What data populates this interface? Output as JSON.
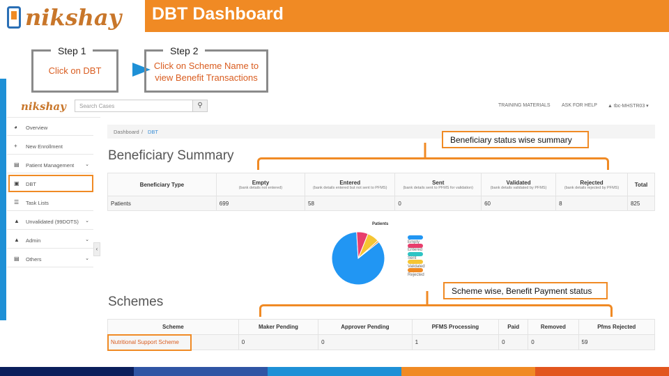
{
  "slide": {
    "title": "DBT Dashboard",
    "brand": "nikshay",
    "step1": {
      "label": "Step 1",
      "text": "Click on DBT"
    },
    "step2": {
      "label": "Step 2",
      "text": "Click on Scheme Name to view Benefit Transactions"
    },
    "callout_beneficiary": "Beneficiary status wise summary",
    "callout_scheme": "Scheme wise, Benefit Payment status"
  },
  "app": {
    "logo": "nikshay",
    "search_placeholder": "Search Cases",
    "nav": {
      "training": "TRAINING MATERIALS",
      "help": "ASK FOR HELP",
      "user": "▲ tbc-MHSTR03 ▾"
    },
    "sidebar": [
      {
        "label": "Overview",
        "icon": "dashboard-icon",
        "glyph": "◕"
      },
      {
        "label": "New Enrollment",
        "icon": "plus-icon",
        "glyph": "+"
      },
      {
        "label": "Patient Management",
        "icon": "clipboard-icon",
        "glyph": "▤",
        "chevron": "⌄"
      },
      {
        "label": "DBT",
        "icon": "money-icon",
        "glyph": "▣"
      },
      {
        "label": "Task Lists",
        "icon": "list-icon",
        "glyph": "☰"
      },
      {
        "label": "Unvalidated (99DOTS)",
        "icon": "warning-icon",
        "glyph": "▲",
        "chevron": "⌄"
      },
      {
        "label": "Admin",
        "icon": "user-icon",
        "glyph": "▲",
        "chevron": "⌄"
      },
      {
        "label": "Others",
        "icon": "folder-icon",
        "glyph": "▤",
        "chevron": "⌄"
      }
    ],
    "breadcrumb": {
      "home": "Dashboard",
      "sep": "/",
      "current": "DBT"
    },
    "beneficiary": {
      "heading": "Beneficiary Summary",
      "headers": {
        "type": "Beneficiary Type",
        "empty": "Empty",
        "empty_sub": "(bank details not entered)",
        "entered": "Entered",
        "entered_sub": "(bank details entered but not sent to PFMS)",
        "sent": "Sent",
        "sent_sub": "(bank details sent to PFMS for validation)",
        "validated": "Validated",
        "validated_sub": "(bank details validated by PFMS)",
        "rejected": "Rejected",
        "rejected_sub": "(bank details rejected by PFMS)",
        "total": "Total"
      },
      "row": {
        "type": "Patients",
        "empty": "699",
        "entered": "58",
        "sent": "0",
        "validated": "60",
        "rejected": "8",
        "total": "825"
      }
    },
    "chart_data": {
      "type": "pie",
      "title": "Patients",
      "categories": [
        "Empty",
        "Entered",
        "Sent",
        "Validated",
        "Rejected"
      ],
      "values": [
        699,
        58,
        0,
        60,
        8
      ],
      "colors": [
        "#2196f3",
        "#e83e6c",
        "#2ec4c4",
        "#f5c533",
        "#f08a24"
      ],
      "legend": "right"
    },
    "schemes": {
      "heading": "Schemes",
      "headers": {
        "scheme": "Scheme",
        "maker": "Maker Pending",
        "approver": "Approver Pending",
        "pfms": "PFMS Processing",
        "paid": "Paid",
        "removed": "Removed",
        "rejected": "Pfms Rejected"
      },
      "row": {
        "scheme": "Nutritional Support Scheme",
        "maker": "0",
        "approver": "0",
        "pfms": "1",
        "paid": "0",
        "removed": "0",
        "rejected": "59"
      }
    }
  },
  "footer_colors": [
    "#0b1f5c",
    "#2f55a4",
    "#1e90d6",
    "#f08a24",
    "#e2561e"
  ]
}
